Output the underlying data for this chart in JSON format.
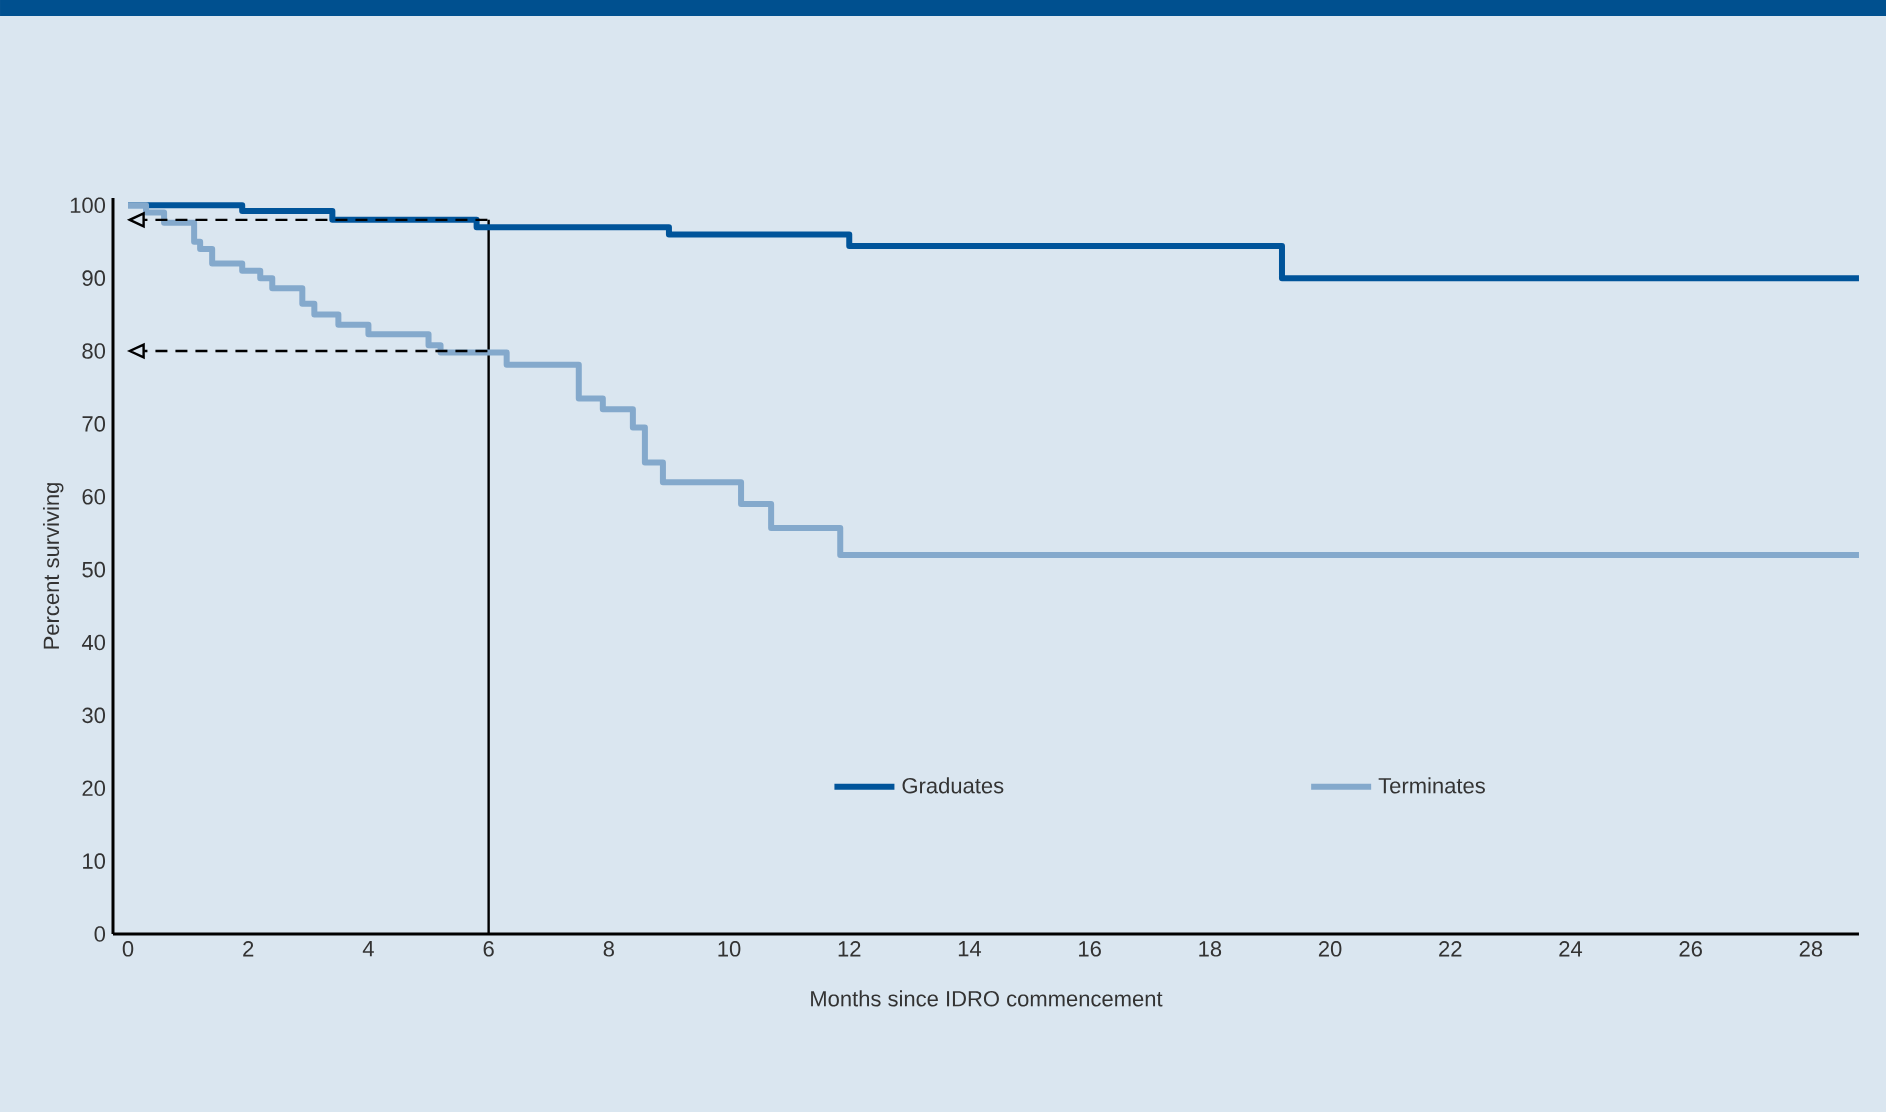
{
  "chart_data": {
    "type": "step",
    "xlabel": "Months since IDRO commencement",
    "ylabel": "Percent surviving",
    "xlim": [
      -0.25,
      28.8
    ],
    "ylim": [
      0,
      101
    ],
    "xticks": [
      0,
      2,
      4,
      6,
      8,
      10,
      12,
      14,
      16,
      18,
      20,
      22,
      24,
      26,
      28
    ],
    "yticks": [
      0,
      10,
      20,
      30,
      40,
      50,
      60,
      70,
      80,
      90,
      100
    ],
    "series": [
      {
        "name": "Graduates",
        "color": "#00549a",
        "x": [
          0,
          1.9,
          3.4,
          5.8,
          9.0,
          12.0,
          19.2,
          28.8
        ],
        "values": [
          100,
          99.2,
          98,
          97,
          96,
          94.4,
          90,
          90
        ]
      },
      {
        "name": "Terminates",
        "color": "#84a9cc",
        "x": [
          0,
          0.3,
          0.6,
          1.1,
          1.2,
          1.4,
          1.9,
          2.2,
          2.4,
          2.9,
          3.1,
          3.5,
          4.0,
          5.0,
          5.2,
          6.3,
          7.5,
          7.9,
          8.4,
          8.6,
          8.9,
          10.2,
          10.7,
          11.85,
          28.8
        ],
        "values": [
          100,
          99,
          97.6,
          95,
          94,
          92,
          91,
          90,
          88.6,
          86.5,
          85,
          83.6,
          82.3,
          80.8,
          79.8,
          78.1,
          73.5,
          72,
          69.5,
          64.7,
          62,
          59,
          55.7,
          52,
          52
        ]
      }
    ],
    "ref_lines": [
      {
        "axis": "x",
        "value": 6,
        "color": "#000000",
        "line_style": "solid"
      },
      {
        "axis": "y",
        "value": 98,
        "color": "#000000",
        "line_style": "dashed"
      },
      {
        "axis": "y",
        "value": 80,
        "color": "#000000",
        "line_style": "dashed"
      }
    ],
    "legend": "bottom",
    "grid": false,
    "line_style": "solid",
    "marker": "none"
  }
}
